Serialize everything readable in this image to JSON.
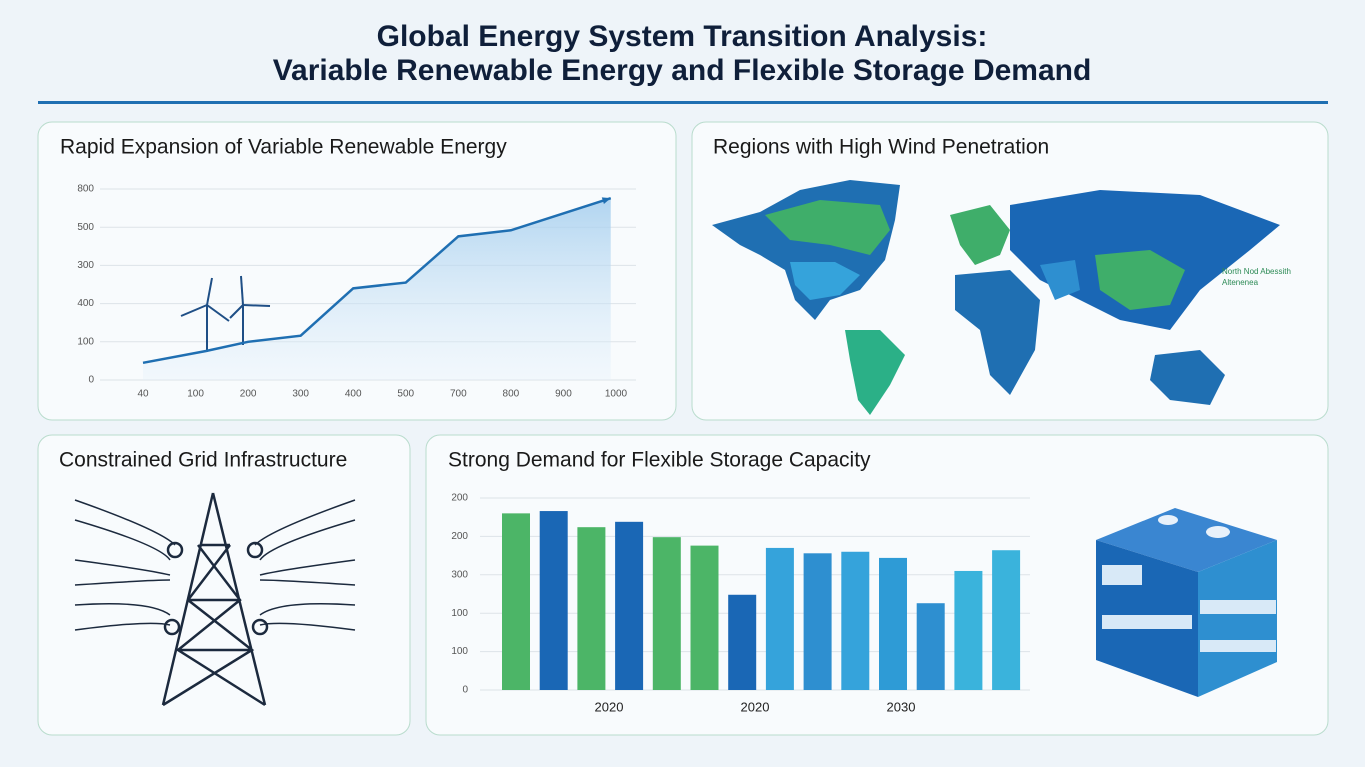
{
  "title_lines": [
    "Global Energy System Transition Analysis:",
    "Variable Renewable Energy and Flexible Storage Demand"
  ],
  "chart_data": [
    {
      "type": "line",
      "title": "Rapid Expansion of Variable Renewable Energy",
      "color": "#1f6fb2",
      "x": [
        0,
        1.2,
        2,
        3,
        4,
        5,
        6,
        7,
        8.9
      ],
      "values": [
        45,
        76,
        100,
        116,
        240,
        255,
        376,
        392,
        476
      ],
      "xlim": [
        0,
        9
      ],
      "xticks": [
        {
          "value": 0,
          "label": "40"
        },
        {
          "value": 1,
          "label": "100"
        },
        {
          "value": 2,
          "label": "200"
        },
        {
          "value": 3,
          "label": "300"
        },
        {
          "value": 4,
          "label": "400"
        },
        {
          "value": 5,
          "label": "500"
        },
        {
          "value": 6,
          "label": "700"
        },
        {
          "value": 7,
          "label": "800"
        },
        {
          "value": 8,
          "label": "900"
        },
        {
          "value": 9,
          "label": "1000"
        }
      ],
      "ylim": [
        0,
        500
      ],
      "yticks": [
        0,
        100,
        {
          "value": 200,
          "label": "400"
        },
        300,
        {
          "value": 400,
          "label": "500"
        },
        {
          "value": 500,
          "label": "800"
        }
      ],
      "grid": true
    },
    {
      "type": "bar",
      "title": "Strong Demand for Flexible Storage Capacity",
      "values": [
        230,
        233,
        212,
        219,
        199,
        188,
        124,
        185,
        178,
        180,
        172,
        113,
        155,
        182
      ],
      "colors": [
        "#4cb567",
        "#1a67b5",
        "#4cb567",
        "#1a67b5",
        "#4cb567",
        "#4cb567",
        "#1a67b5",
        "#35a3db",
        "#2e8fd0",
        "#35a3db",
        "#2e9bd6",
        "#2e8fd0",
        "#3ab3dc",
        "#3ab3dc"
      ],
      "ylim": [
        0,
        250
      ],
      "yticks": [
        0,
        {
          "value": 50,
          "label": "100"
        },
        100,
        {
          "value": 150,
          "label": "300"
        },
        {
          "value": 200,
          "label": "200"
        },
        {
          "value": 250,
          "label": "200"
        }
      ],
      "grid": true,
      "xlabels": [
        "2020",
        "2020",
        "2030"
      ]
    }
  ],
  "map": {
    "title": "Regions with High Wind Penetration",
    "labels": [
      "North Nod Abessith",
      "Altenenea"
    ]
  },
  "grid_panel": {
    "title": "Constrained Grid Infrastructure"
  }
}
